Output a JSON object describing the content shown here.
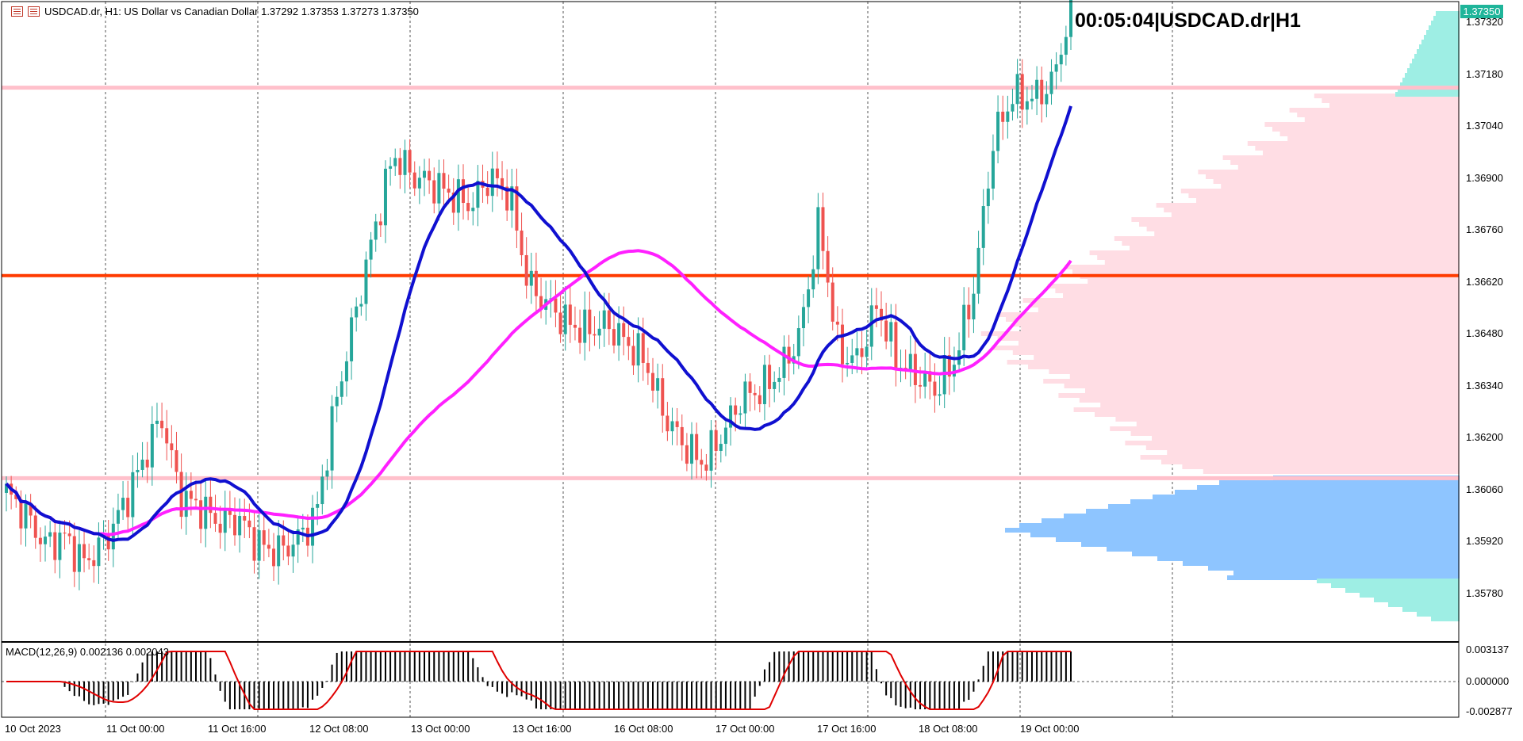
{
  "header": {
    "symbol_info": "USDCAD.dr, H1:  US Dollar vs Canadian Dollar  1.37292 1.37353 1.37273 1.37350"
  },
  "timer": "00:05:04|USDCAD.dr|H1",
  "price_tag": "1.37350",
  "price_ticks": [
    "1.37320",
    "1.37180",
    "1.37040",
    "1.36900",
    "1.36760",
    "1.36620",
    "1.36480",
    "1.36340",
    "1.36200",
    "1.36060",
    "1.35920",
    "1.35780"
  ],
  "macd": {
    "label": "MACD(12,26,9) 0.002136 0.002043",
    "ticks": [
      "0.003137",
      "0.000000",
      "-0.002877"
    ]
  },
  "time_ticks": [
    "10 Oct 2023",
    "11 Oct 00:00",
    "11 Oct 16:00",
    "12 Oct 08:00",
    "13 Oct 00:00",
    "13 Oct 16:00",
    "16 Oct 08:00",
    "17 Oct 00:00",
    "17 Oct 16:00",
    "18 Oct 08:00",
    "19 Oct 00:00"
  ],
  "colors": {
    "bull": "#26a69a",
    "bear": "#ef5350",
    "ma_fast": "#1010d0",
    "ma_slow": "#ff20ff",
    "level_main": "#ff3b00",
    "level_pink": "#ffc0cb",
    "profile_pink": "#ffdde4",
    "profile_blue": "#8ec5ff",
    "profile_cyan": "#9eeee4",
    "macd_signal": "#e00000"
  },
  "chart_data": {
    "type": "candlestick",
    "symbol": "USDCAD.dr",
    "timeframe": "H1",
    "levels": [
      1.3714,
      1.3663,
      1.3608
    ],
    "ylim": [
      1.357,
      1.3735
    ],
    "last": {
      "open": 1.37292,
      "high": 1.37353,
      "low": 1.37273,
      "close": 1.3735
    },
    "close_path": [
      1.3604,
      1.3598,
      1.359,
      1.3592,
      1.3585,
      1.359,
      1.36,
      1.3612,
      1.3625,
      1.3603,
      1.36,
      1.3596,
      1.3597,
      1.359,
      1.3588,
      1.3591,
      1.3598,
      1.3628,
      1.3652,
      1.3675,
      1.3696,
      1.369,
      1.3688,
      1.3685,
      1.3682,
      1.369,
      1.3685,
      1.366,
      1.3655,
      1.365,
      1.3648,
      1.365,
      1.3645,
      1.364,
      1.3625,
      1.3617,
      1.3612,
      1.362,
      1.363,
      1.3632,
      1.3637,
      1.3647,
      1.3678,
      1.3642,
      1.364,
      1.3655,
      1.364,
      1.3636,
      1.3632,
      1.364,
      1.366,
      1.37,
      1.3712,
      1.3711,
      1.3715,
      1.3735
    ]
  }
}
